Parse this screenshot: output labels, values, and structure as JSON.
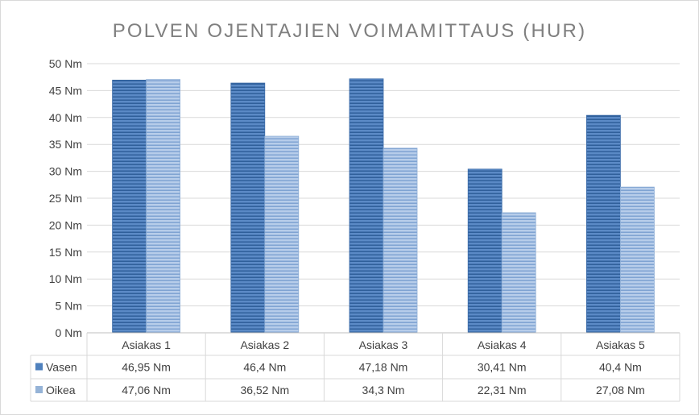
{
  "chart_data": {
    "type": "bar",
    "title": "POLVEN OJENTAJIEN VOIMAMITTAUS (HUR)",
    "categories": [
      "Asiakas 1",
      "Asiakas 2",
      "Asiakas 3",
      "Asiakas 4",
      "Asiakas 5"
    ],
    "series": [
      {
        "name": "Vasen",
        "values": [
          46.95,
          46.4,
          47.18,
          30.41,
          40.4
        ],
        "labels": [
          "46,95 Nm",
          "46,4 Nm",
          "47,18 Nm",
          "30,41 Nm",
          "40,4 Nm"
        ],
        "color": "#4f81bd"
      },
      {
        "name": "Oikea",
        "values": [
          47.06,
          36.52,
          34.3,
          22.31,
          27.08
        ],
        "labels": [
          "47,06 Nm",
          "36,52 Nm",
          "34,3 Nm",
          "22,31 Nm",
          "27,08 Nm"
        ],
        "color": "#95b3d7"
      }
    ],
    "y_ticks": [
      "0 Nm",
      "5 Nm",
      "10 Nm",
      "15 Nm",
      "20 Nm",
      "25 Nm",
      "30 Nm",
      "35 Nm",
      "40 Nm",
      "45 Nm",
      "50 Nm"
    ],
    "ylim": [
      0,
      50
    ],
    "grid": true,
    "legend_placement": "data-table-below"
  }
}
